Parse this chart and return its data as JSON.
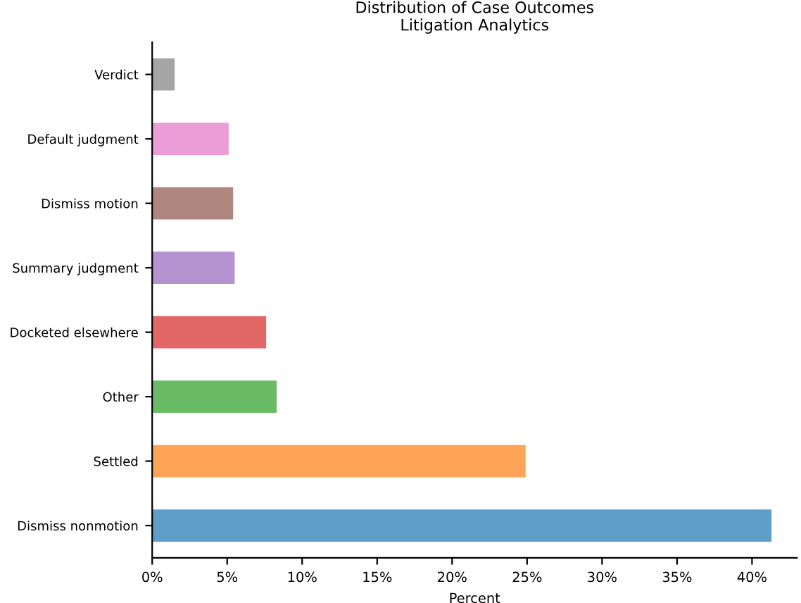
{
  "chart_data": {
    "type": "bar",
    "orientation": "horizontal",
    "title": "Distribution of Case Outcomes\nLitigation Analytics",
    "xlabel": "Percent",
    "categories": [
      "Verdict",
      "Default judgment",
      "Dismiss motion",
      "Summary judgment",
      "Docketed elsewhere",
      "Other",
      "Settled",
      "Dismiss nonmotion"
    ],
    "values": [
      1.5,
      5.1,
      5.4,
      5.5,
      7.6,
      8.3,
      24.9,
      41.3
    ],
    "colors": [
      "#a5a5a5",
      "#ec9dd6",
      "#b0877f",
      "#b592d0",
      "#e26868",
      "#6abb66",
      "#ffa456",
      "#5f9ec9"
    ],
    "xlim": [
      0,
      43
    ],
    "xticks": [
      {
        "value": 0,
        "label": "0%"
      },
      {
        "value": 5,
        "label": "5%"
      },
      {
        "value": 10,
        "label": "10%"
      },
      {
        "value": 15,
        "label": "15%"
      },
      {
        "value": 20,
        "label": "20%"
      },
      {
        "value": 25,
        "label": "25%"
      },
      {
        "value": 30,
        "label": "30%"
      },
      {
        "value": 35,
        "label": "35%"
      },
      {
        "value": 40,
        "label": "40%"
      }
    ],
    "grid": false,
    "legend": false
  }
}
